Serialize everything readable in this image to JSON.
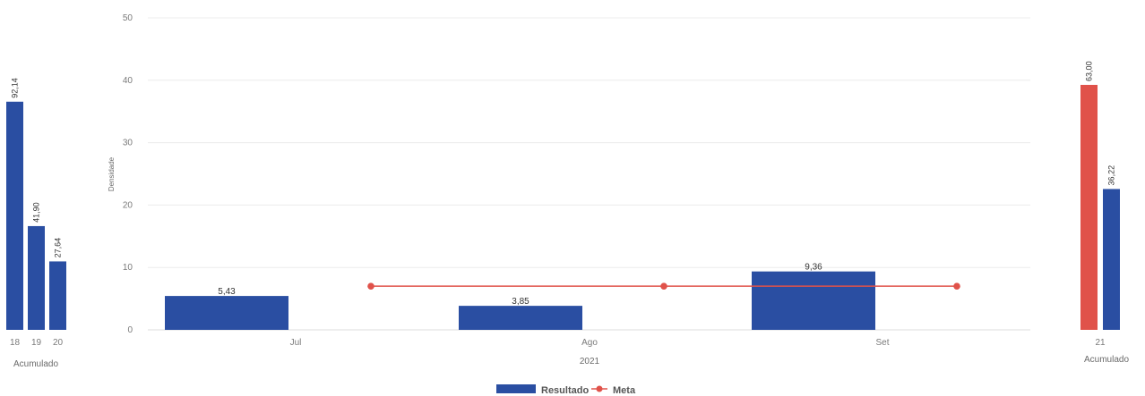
{
  "chart_data": [
    {
      "type": "bar",
      "panel": "left",
      "categories": [
        "18",
        "19",
        "20"
      ],
      "values": [
        92.14,
        41.9,
        27.64
      ],
      "value_labels": [
        "92,14",
        "41,90",
        "27,64"
      ],
      "xlabel": "Acumulado",
      "color": "#2a4ea2"
    },
    {
      "type": "bar",
      "panel": "main",
      "categories": [
        "Jul",
        "Ago",
        "Set"
      ],
      "xlabel": "2021",
      "ylabel": "Densidade",
      "ylim": [
        0,
        50
      ],
      "yticks": [
        "0",
        "10",
        "20",
        "30",
        "40",
        "50"
      ],
      "grid": true,
      "series": [
        {
          "name": "Resultado",
          "type": "bar",
          "values": [
            5.43,
            3.85,
            9.36
          ],
          "value_labels": [
            "5,43",
            "3,85",
            "9,36"
          ],
          "color": "#2a4ea2"
        },
        {
          "name": "Meta",
          "type": "line",
          "values": [
            7.0,
            7.0,
            7.0
          ],
          "color": "#e0524a"
        }
      ],
      "legend": {
        "position": "bottom"
      }
    },
    {
      "type": "bar",
      "panel": "right",
      "categories": [
        "21"
      ],
      "xlabel": "Acumulado",
      "series": [
        {
          "name": "Meta",
          "values": [
            63.0
          ],
          "value_labels": [
            "63,00"
          ],
          "color": "#e0524a"
        },
        {
          "name": "Resultado",
          "values": [
            36.22
          ],
          "value_labels": [
            "36,22"
          ],
          "color": "#2a4ea2"
        }
      ]
    }
  ]
}
